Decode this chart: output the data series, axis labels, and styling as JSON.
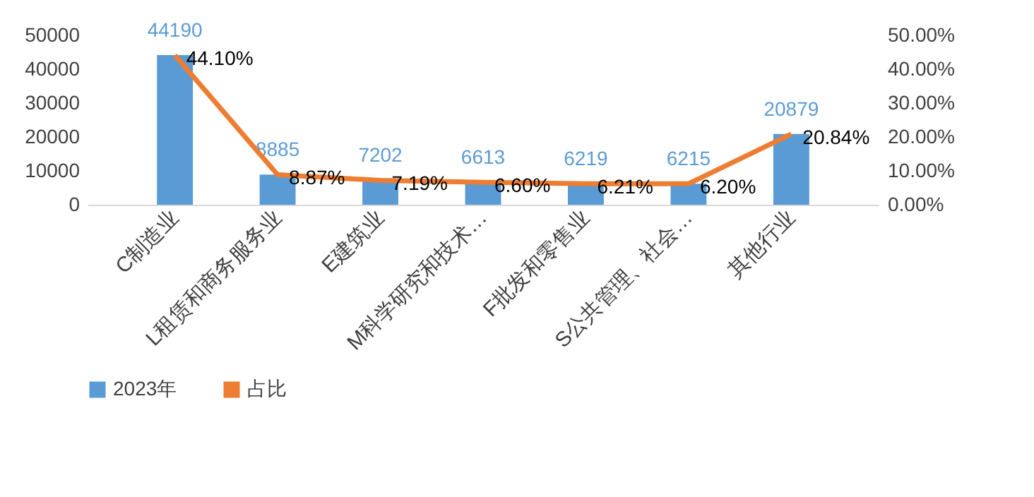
{
  "chart_data": {
    "type": "bar",
    "categories": [
      "C制造业",
      "L租赁和商务服务业",
      "E建筑业",
      "M科学研究和技术…",
      "F批发和零售业",
      "S公共管理、社会…",
      "其他行业"
    ],
    "series": [
      {
        "name": "2023年",
        "type": "bar",
        "color": "#5b9bd5",
        "values": [
          44190,
          8885,
          7202,
          6613,
          6219,
          6215,
          20879
        ]
      },
      {
        "name": "占比",
        "type": "line",
        "axis": "y2",
        "color": "#ed7d31",
        "values": [
          44.1,
          8.87,
          7.19,
          6.6,
          6.21,
          6.2,
          20.84
        ],
        "value_labels": [
          "44.10%",
          "8.87%",
          "7.19%",
          "6.60%",
          "6.21%",
          "6.20%",
          "20.84%"
        ]
      }
    ],
    "data_labels": true,
    "ylim": [
      0,
      50000
    ],
    "yticks": [
      0,
      10000,
      20000,
      30000,
      40000,
      50000
    ],
    "y2lim": [
      0,
      50
    ],
    "y2ticks": [
      {
        "value": 0,
        "label": "0.00%"
      },
      {
        "value": 10,
        "label": "10.00%"
      },
      {
        "value": 20,
        "label": "20.00%"
      },
      {
        "value": 30,
        "label": "30.00%"
      },
      {
        "value": 40,
        "label": "40.00%"
      },
      {
        "value": 50,
        "label": "50.00%"
      }
    ],
    "grid": false,
    "legend": "bottom",
    "line_style": "solid",
    "marker": "none"
  }
}
